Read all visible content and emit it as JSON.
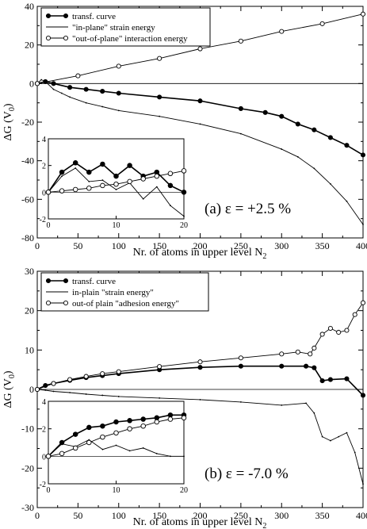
{
  "chart_data": [
    {
      "type": "line",
      "panel_label": "(a)",
      "annotation_symbol": "ε",
      "annotation_value": "= +2.5 %",
      "xlabel": "Nr. of atoms in upper level N",
      "xlabel_sub": "2",
      "ylabel": "ΔG (V",
      "ylabel_sub": "0",
      "ylabel_tail": ")",
      "xlim": [
        0,
        400
      ],
      "ylim": [
        -80,
        40
      ],
      "xticks": [
        0,
        50,
        100,
        150,
        200,
        250,
        300,
        350,
        400
      ],
      "yticks": [
        -80,
        -60,
        -40,
        -20,
        0,
        20,
        40
      ],
      "legend_position": "top-left",
      "series": [
        {
          "name": "transf. curve",
          "style": "filled",
          "x": [
            0,
            10,
            20,
            40,
            60,
            80,
            100,
            150,
            200,
            250,
            280,
            300,
            320,
            340,
            360,
            380,
            400
          ],
          "y": [
            0,
            1,
            0,
            -2,
            -3,
            -4,
            -5,
            -7,
            -9,
            -13,
            -15,
            -17,
            -21,
            -24,
            -28,
            -32,
            -37
          ]
        },
        {
          "name": "\"in-plane\" strain energy",
          "style": "line",
          "x": [
            0,
            5,
            10,
            20,
            30,
            40,
            60,
            80,
            100,
            150,
            200,
            250,
            300,
            320,
            340,
            360,
            380,
            400
          ],
          "y": [
            0,
            2,
            1,
            -3,
            -5,
            -7,
            -10,
            -12,
            -14,
            -17,
            -21,
            -26,
            -34,
            -38,
            -44,
            -52,
            -61,
            -73
          ]
        },
        {
          "name": "\"out-of-plane\" interaction energy",
          "style": "open",
          "x": [
            0,
            50,
            100,
            150,
            200,
            250,
            300,
            350,
            400
          ],
          "y": [
            0,
            4,
            9,
            13,
            18,
            22,
            27,
            31,
            36
          ]
        }
      ],
      "inset": {
        "xlim": [
          0,
          20
        ],
        "ylim": [
          -2,
          4
        ],
        "xticks": [
          0,
          10,
          20
        ],
        "yticks": [
          -2,
          0,
          2,
          4
        ],
        "series": [
          {
            "name": "transf. curve",
            "style": "filled",
            "x": [
              0,
              2,
              4,
              6,
              8,
              10,
              12,
              14,
              16,
              18,
              20
            ],
            "y": [
              0,
              1.5,
              2.2,
              1.5,
              2.1,
              1.2,
              2,
              1.2,
              1.5,
              0.5,
              0
            ]
          },
          {
            "name": "\"in-plane\" strain energy",
            "style": "line",
            "x": [
              0,
              2,
              4,
              6,
              8,
              10,
              12,
              14,
              16,
              18,
              20
            ],
            "y": [
              0,
              1.2,
              1.8,
              0.8,
              0.9,
              0.2,
              0.7,
              -0.5,
              0.4,
              -1,
              -1.8
            ]
          },
          {
            "name": "\"out-of-plane\" interaction energy",
            "style": "open",
            "x": [
              0,
              2,
              4,
              6,
              8,
              10,
              12,
              14,
              16,
              18,
              20
            ],
            "y": [
              0,
              0.1,
              0.2,
              0.3,
              0.5,
              0.6,
              0.8,
              1.0,
              1.2,
              1.4,
              1.6
            ]
          }
        ]
      }
    },
    {
      "type": "line",
      "panel_label": "(b)",
      "annotation_symbol": "ε",
      "annotation_value": "= -7.0 %",
      "xlabel": "Nr. of atoms in upper level N",
      "xlabel_sub": "2",
      "ylabel": "ΔG (V",
      "ylabel_sub": "0",
      "ylabel_tail": ")",
      "xlim": [
        0,
        400
      ],
      "ylim": [
        -30,
        30
      ],
      "xticks": [
        0,
        50,
        100,
        150,
        200,
        250,
        300,
        350,
        400
      ],
      "yticks": [
        -30,
        -20,
        -10,
        0,
        10,
        20,
        30
      ],
      "legend_position": "top-left",
      "series": [
        {
          "name": "transf. curve",
          "style": "filled",
          "x": [
            0,
            10,
            20,
            40,
            60,
            80,
            100,
            150,
            200,
            250,
            300,
            330,
            340,
            350,
            360,
            380,
            400
          ],
          "y": [
            0,
            1,
            1.5,
            2.3,
            3,
            3.5,
            4,
            5,
            5.6,
            5.9,
            5.9,
            5.9,
            5.5,
            2.2,
            2.5,
            2.7,
            -1.5
          ]
        },
        {
          "name": "in-plain \"strain energy\"",
          "style": "line",
          "x": [
            0,
            10,
            20,
            40,
            60,
            80,
            100,
            150,
            200,
            250,
            300,
            330,
            340,
            350,
            360,
            370,
            380,
            390,
            400
          ],
          "y": [
            0,
            -0.2,
            -0.5,
            -0.8,
            -1.2,
            -1.5,
            -1.8,
            -2.2,
            -2.6,
            -3.2,
            -4,
            -3.5,
            -6,
            -12,
            -13,
            -12,
            -11,
            -16,
            -24
          ]
        },
        {
          "name": "out-of plain \"adhesion energy\"",
          "style": "open",
          "x": [
            0,
            20,
            40,
            60,
            80,
            100,
            150,
            200,
            250,
            300,
            320,
            335,
            340,
            350,
            360,
            370,
            380,
            390,
            400
          ],
          "y": [
            0,
            1.5,
            2.5,
            3.3,
            4,
            4.5,
            5.8,
            7,
            8,
            9,
            9.5,
            9,
            10.5,
            14,
            15.5,
            14.5,
            15,
            19,
            22
          ]
        }
      ],
      "inset": {
        "xlim": [
          0,
          20
        ],
        "ylim": [
          -2,
          4
        ],
        "xticks": [
          0,
          10,
          20
        ],
        "yticks": [
          -2,
          0,
          2,
          4
        ],
        "series": [
          {
            "name": "transf. curve",
            "style": "filled",
            "x": [
              0,
              2,
              4,
              6,
              8,
              10,
              12,
              14,
              16,
              18,
              20
            ],
            "y": [
              0,
              1,
              1.6,
              2.1,
              2.2,
              2.5,
              2.6,
              2.7,
              2.8,
              3.0,
              3.0
            ]
          },
          {
            "name": "in-plain \"strain energy\"",
            "style": "line",
            "x": [
              0,
              2,
              4,
              6,
              8,
              10,
              12,
              14,
              16,
              18,
              20
            ],
            "y": [
              0,
              0.9,
              0.7,
              1.2,
              0.5,
              0.8,
              0.4,
              0.6,
              0.2,
              0.0,
              0.0
            ]
          },
          {
            "name": "out-of plain \"adhesion energy\"",
            "style": "open",
            "x": [
              0,
              2,
              4,
              6,
              8,
              10,
              12,
              14,
              16,
              18,
              20
            ],
            "y": [
              0,
              0.2,
              0.6,
              1.0,
              1.4,
              1.7,
              2.0,
              2.2,
              2.5,
              2.7,
              2.8
            ]
          }
        ]
      }
    }
  ]
}
